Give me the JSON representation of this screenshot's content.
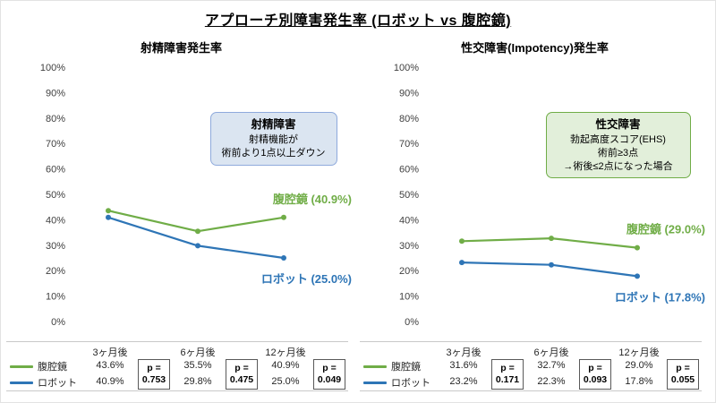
{
  "page_title": "アプローチ別障害発生率 (ロボット vs 腹腔鏡)",
  "colors": {
    "laparoscopy_green": "#70AD47",
    "robot_blue": "#2E75B6"
  },
  "chart_data": [
    {
      "type": "line",
      "title": "射精障害発生率",
      "categories": [
        "3ヶ月後",
        "6ヶ月後",
        "12ヶ月後"
      ],
      "series": [
        {
          "name": "腹腔鏡",
          "values": [
            43.6,
            35.5,
            40.9
          ],
          "color": "#70AD47",
          "end_label": "腹腔鏡 (40.9%)"
        },
        {
          "name": "ロボット",
          "values": [
            40.9,
            29.8,
            25.0
          ],
          "color": "#2E75B6",
          "end_label": "ロボット (25.0%)"
        }
      ],
      "ylim": [
        0,
        100
      ],
      "ytick_step": 10,
      "ytick_suffix": "%",
      "grid": false,
      "legend_position": "bottom-table",
      "p_label": "p =",
      "p_values": [
        "0.753",
        "0.475",
        "0.049"
      ],
      "annotation": {
        "title": "射精障害",
        "line1": "射精機能が",
        "line2": "術前より1点以上ダウン",
        "bg": "#dbe5f1",
        "border": "#8faadc"
      }
    },
    {
      "type": "line",
      "title": "性交障害(Impotency)発生率",
      "categories": [
        "3ヶ月後",
        "6ヶ月後",
        "12ヶ月後"
      ],
      "series": [
        {
          "name": "腹腔鏡",
          "values": [
            31.6,
            32.7,
            29.0
          ],
          "color": "#70AD47",
          "end_label": "腹腔鏡 (29.0%)"
        },
        {
          "name": "ロボット",
          "values": [
            23.2,
            22.3,
            17.8
          ],
          "color": "#2E75B6",
          "end_label": "ロボット (17.8%)"
        }
      ],
      "ylim": [
        0,
        100
      ],
      "ytick_step": 10,
      "ytick_suffix": "%",
      "grid": false,
      "legend_position": "bottom-table",
      "p_label": "p =",
      "p_values": [
        "0.171",
        "0.093",
        "0.055"
      ],
      "annotation": {
        "title": "性交障害",
        "line1": "勃起高度スコア(EHS)",
        "line2": "術前≥3点",
        "line3": "→術後≤2点になった場合",
        "bg": "#e2efda",
        "border": "#70AD47"
      }
    }
  ]
}
